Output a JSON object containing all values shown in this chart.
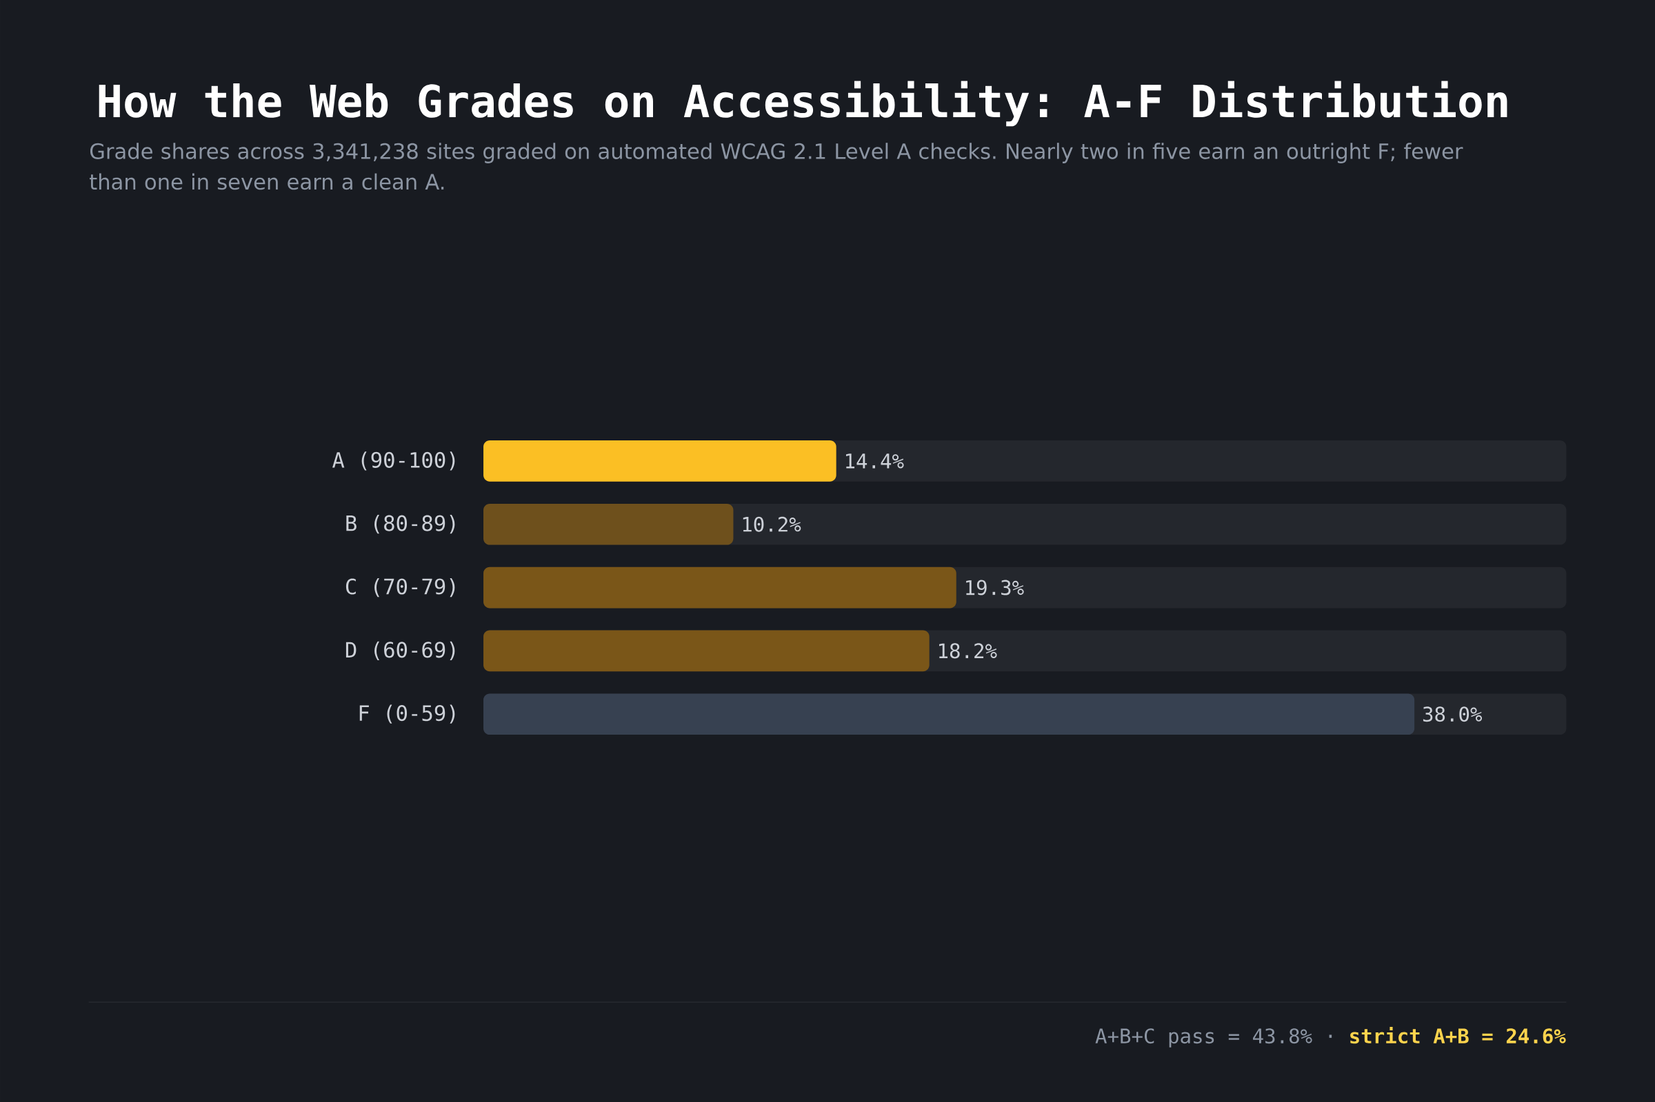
{
  "chart_data": {
    "type": "bar",
    "orientation": "horizontal",
    "title": "How the Web Grades on Accessibility: A-F Distribution",
    "subtitle": "Grade shares across 3,341,238 sites graded on automated WCAG 2.1 Level A checks. Nearly two in five earn an outright F; fewer than one in seven earn a clean A.",
    "categories": [
      "A (90-100)",
      "B (80-89)",
      "C (70-79)",
      "D (60-69)",
      "F (0-59)"
    ],
    "values": [
      14.4,
      10.2,
      19.3,
      18.2,
      38.0
    ],
    "colors": [
      "#fbbf24",
      "#6e501c",
      "#7a5618",
      "#7a5618",
      "#374151"
    ],
    "value_labels": [
      "14.4%",
      "10.2%",
      "19.3%",
      "18.2%",
      "38.0%"
    ],
    "xlim": [
      0,
      44.2
    ],
    "annotations": [
      "A+B+C pass = 43.8% ·",
      "strict A+B = 24.6%"
    ]
  }
}
